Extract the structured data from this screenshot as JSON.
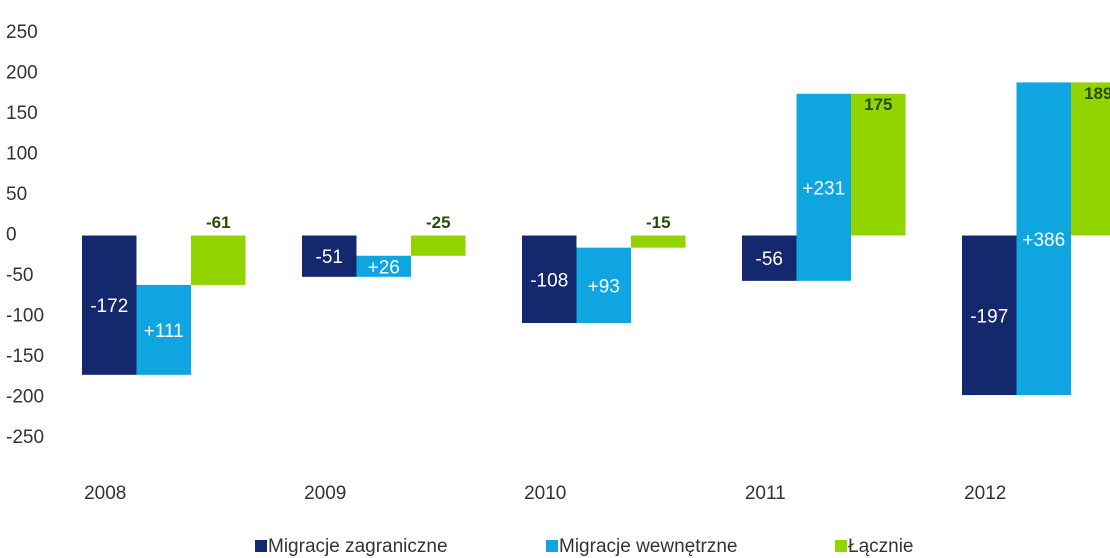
{
  "chart_data": {
    "type": "waterfall-group",
    "categories": [
      "2008",
      "2009",
      "2010",
      "2011",
      "2012"
    ],
    "series": [
      {
        "name": "Migracje zagraniczne",
        "color": "#13286d",
        "values": [
          -172,
          -51,
          -108,
          -56,
          -197
        ]
      },
      {
        "name": "Migracje wewnętrzne",
        "color": "#0ea5e0",
        "values": [
          111,
          26,
          93,
          231,
          386
        ],
        "value_labels": [
          "+111",
          "+26",
          "+93",
          "+231",
          "+386"
        ]
      },
      {
        "name": "Łącznie",
        "color": "#92d400",
        "values": [
          -61,
          -25,
          -15,
          175,
          189
        ]
      }
    ],
    "ylim": [
      -250,
      250
    ],
    "yticks": [
      -250,
      -200,
      -150,
      -100,
      -50,
      0,
      50,
      100,
      150,
      200,
      250
    ],
    "grid": false,
    "legend": "bottom"
  }
}
